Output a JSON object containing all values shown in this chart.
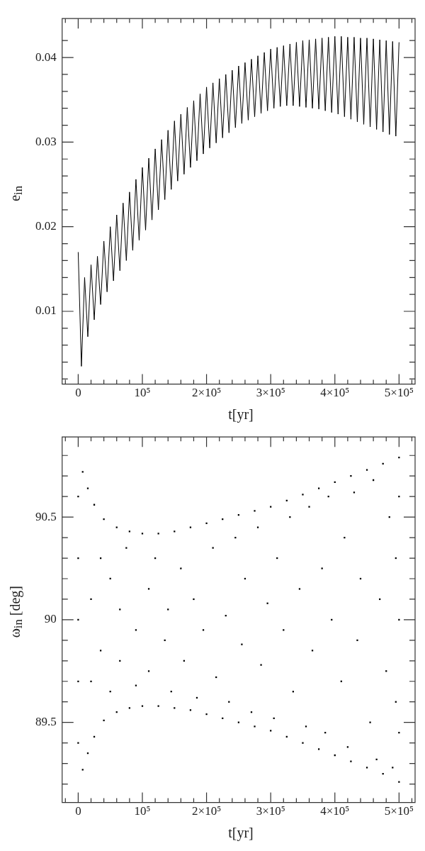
{
  "chart_data": [
    {
      "type": "line",
      "xlabel": "t[yr]",
      "ylabel": "e$_{in}$",
      "marker": "none",
      "color": "#000000",
      "x": [
        0,
        5000,
        10000,
        15000,
        20000,
        25000,
        30000,
        35000,
        40000,
        45000,
        50000,
        55000,
        60000,
        65000,
        70000,
        75000,
        80000,
        85000,
        90000,
        95000,
        100000,
        105000,
        110000,
        115000,
        120000,
        125000,
        130000,
        135000,
        140000,
        145000,
        150000,
        155000,
        160000,
        165000,
        170000,
        175000,
        180000,
        185000,
        190000,
        195000,
        200000,
        205000,
        210000,
        215000,
        220000,
        225000,
        230000,
        235000,
        240000,
        245000,
        250000,
        255000,
        260000,
        265000,
        270000,
        275000,
        280000,
        285000,
        290000,
        295000,
        300000,
        305000,
        310000,
        315000,
        320000,
        325000,
        330000,
        335000,
        340000,
        345000,
        350000,
        355000,
        360000,
        365000,
        370000,
        375000,
        380000,
        385000,
        390000,
        395000,
        400000,
        405000,
        410000,
        415000,
        420000,
        425000,
        430000,
        435000,
        440000,
        445000,
        450000,
        455000,
        460000,
        465000,
        470000,
        475000,
        480000,
        485000,
        490000,
        495000,
        500000
      ],
      "values": [
        0.017,
        0.0035,
        0.014,
        0.007,
        0.0155,
        0.009,
        0.0165,
        0.0108,
        0.0183,
        0.0123,
        0.02,
        0.0136,
        0.0214,
        0.0148,
        0.0228,
        0.016,
        0.0241,
        0.0172,
        0.0256,
        0.0184,
        0.027,
        0.0196,
        0.0281,
        0.0208,
        0.0292,
        0.022,
        0.0303,
        0.0232,
        0.0314,
        0.0244,
        0.0325,
        0.0254,
        0.0333,
        0.0262,
        0.0341,
        0.027,
        0.0349,
        0.0278,
        0.0357,
        0.0286,
        0.0365,
        0.0293,
        0.037,
        0.0299,
        0.0375,
        0.0305,
        0.038,
        0.0311,
        0.0385,
        0.0317,
        0.039,
        0.0322,
        0.0394,
        0.0326,
        0.0398,
        0.033,
        0.0402,
        0.0334,
        0.0406,
        0.0337,
        0.041,
        0.034,
        0.0412,
        0.0342,
        0.0414,
        0.0343,
        0.0416,
        0.0343,
        0.0418,
        0.0342,
        0.042,
        0.0341,
        0.0421,
        0.034,
        0.0422,
        0.0339,
        0.0423,
        0.0337,
        0.0424,
        0.0335,
        0.0425,
        0.0333,
        0.0425,
        0.033,
        0.0424,
        0.0327,
        0.0424,
        0.0324,
        0.0423,
        0.0321,
        0.0423,
        0.0318,
        0.0422,
        0.0315,
        0.0421,
        0.0312,
        0.042,
        0.0309,
        0.0419,
        0.0307,
        0.0418
      ],
      "xlim": [
        -25000,
        525000
      ],
      "ylim": [
        0.0014,
        0.0446
      ],
      "xticks": [
        {
          "value": -20000,
          "label": null
        },
        {
          "value": 0,
          "label": "0"
        },
        {
          "value": 20000,
          "label": null
        },
        {
          "value": 40000,
          "label": null
        },
        {
          "value": 60000,
          "label": null
        },
        {
          "value": 80000,
          "label": null
        },
        {
          "value": 100000,
          "label": "10⁵"
        },
        {
          "value": 120000,
          "label": null
        },
        {
          "value": 140000,
          "label": null
        },
        {
          "value": 160000,
          "label": null
        },
        {
          "value": 180000,
          "label": null
        },
        {
          "value": 200000,
          "label": "2×10⁵"
        },
        {
          "value": 220000,
          "label": null
        },
        {
          "value": 240000,
          "label": null
        },
        {
          "value": 260000,
          "label": null
        },
        {
          "value": 280000,
          "label": null
        },
        {
          "value": 300000,
          "label": "3×10⁵"
        },
        {
          "value": 320000,
          "label": null
        },
        {
          "value": 340000,
          "label": null
        },
        {
          "value": 360000,
          "label": null
        },
        {
          "value": 380000,
          "label": null
        },
        {
          "value": 400000,
          "label": "4×10⁵"
        },
        {
          "value": 420000,
          "label": null
        },
        {
          "value": 440000,
          "label": null
        },
        {
          "value": 460000,
          "label": null
        },
        {
          "value": 480000,
          "label": null
        },
        {
          "value": 500000,
          "label": "5×10⁵"
        },
        {
          "value": 520000,
          "label": null
        }
      ],
      "yticks": [
        {
          "value": 0.002,
          "label": null
        },
        {
          "value": 0.004,
          "label": null
        },
        {
          "value": 0.006,
          "label": null
        },
        {
          "value": 0.008,
          "label": null
        },
        0.01,
        {
          "value": 0.012,
          "label": null
        },
        {
          "value": 0.014,
          "label": null
        },
        {
          "value": 0.016,
          "label": null
        },
        {
          "value": 0.018,
          "label": null
        },
        0.02,
        {
          "value": 0.022,
          "label": null
        },
        {
          "value": 0.024,
          "label": null
        },
        {
          "value": 0.026,
          "label": null
        },
        {
          "value": 0.028,
          "label": null
        },
        0.03,
        {
          "value": 0.032,
          "label": null
        },
        {
          "value": 0.034,
          "label": null
        },
        {
          "value": 0.036,
          "label": null
        },
        {
          "value": 0.038,
          "label": null
        },
        0.04,
        {
          "value": 0.042,
          "label": null
        }
      ]
    },
    {
      "type": "scatter",
      "xlabel": "t[yr]",
      "ylabel": "ω$_{in}$ [deg]",
      "marker": "square",
      "color": "#000000",
      "x": [
        0,
        0,
        0,
        0,
        0,
        7000,
        15000,
        25000,
        40000,
        60000,
        80000,
        100000,
        125000,
        150000,
        175000,
        200000,
        225000,
        250000,
        275000,
        300000,
        325000,
        350000,
        375000,
        400000,
        425000,
        450000,
        475000,
        500000,
        7000,
        15000,
        25000,
        40000,
        60000,
        80000,
        100000,
        125000,
        150000,
        175000,
        200000,
        225000,
        250000,
        275000,
        300000,
        325000,
        350000,
        375000,
        400000,
        425000,
        450000,
        475000,
        500000,
        20000,
        20000,
        35000,
        35000,
        50000,
        50000,
        65000,
        65000,
        75000,
        90000,
        90000,
        110000,
        110000,
        120000,
        135000,
        140000,
        145000,
        160000,
        165000,
        180000,
        185000,
        195000,
        210000,
        215000,
        230000,
        235000,
        245000,
        255000,
        260000,
        270000,
        280000,
        285000,
        295000,
        305000,
        310000,
        320000,
        330000,
        335000,
        345000,
        355000,
        360000,
        365000,
        380000,
        385000,
        390000,
        395000,
        410000,
        415000,
        420000,
        430000,
        435000,
        440000,
        455000,
        460000,
        465000,
        470000,
        480000,
        485000,
        490000,
        495000,
        495000,
        500000,
        500000,
        500000
      ],
      "values": [
        89.4,
        89.7,
        90.0,
        90.3,
        90.6,
        90.72,
        90.64,
        90.56,
        90.49,
        90.45,
        90.43,
        90.42,
        90.42,
        90.43,
        90.45,
        90.47,
        90.49,
        90.51,
        90.53,
        90.55,
        90.58,
        90.61,
        90.64,
        90.67,
        90.7,
        90.73,
        90.76,
        90.79,
        89.27,
        89.35,
        89.43,
        89.51,
        89.55,
        89.57,
        89.58,
        89.58,
        89.57,
        89.56,
        89.54,
        89.52,
        89.5,
        89.48,
        89.46,
        89.43,
        89.4,
        89.37,
        89.34,
        89.31,
        89.28,
        89.25,
        89.21,
        90.1,
        89.7,
        90.3,
        89.85,
        89.65,
        90.2,
        90.05,
        89.8,
        90.35,
        89.95,
        89.68,
        90.15,
        89.75,
        90.3,
        89.9,
        90.05,
        89.65,
        90.25,
        89.8,
        90.1,
        89.62,
        89.95,
        90.35,
        89.72,
        90.02,
        89.6,
        90.4,
        89.88,
        90.2,
        89.55,
        90.45,
        89.78,
        90.08,
        89.52,
        90.3,
        89.95,
        90.5,
        89.65,
        90.15,
        89.48,
        90.55,
        89.85,
        90.25,
        89.45,
        90.6,
        90.0,
        89.7,
        90.4,
        89.38,
        90.62,
        89.9,
        90.2,
        89.5,
        90.68,
        89.32,
        90.1,
        89.75,
        90.5,
        89.28,
        90.3,
        89.6,
        90.0,
        89.45,
        90.6
      ],
      "xlim": [
        -25000,
        525000
      ],
      "ylim": [
        89.11,
        90.89
      ],
      "xticks": [
        {
          "value": -20000,
          "label": null
        },
        {
          "value": 0,
          "label": "0"
        },
        {
          "value": 20000,
          "label": null
        },
        {
          "value": 40000,
          "label": null
        },
        {
          "value": 60000,
          "label": null
        },
        {
          "value": 80000,
          "label": null
        },
        {
          "value": 100000,
          "label": "10⁵"
        },
        {
          "value": 120000,
          "label": null
        },
        {
          "value": 140000,
          "label": null
        },
        {
          "value": 160000,
          "label": null
        },
        {
          "value": 180000,
          "label": null
        },
        {
          "value": 200000,
          "label": "2×10⁵"
        },
        {
          "value": 220000,
          "label": null
        },
        {
          "value": 240000,
          "label": null
        },
        {
          "value": 260000,
          "label": null
        },
        {
          "value": 280000,
          "label": null
        },
        {
          "value": 300000,
          "label": "3×10⁵"
        },
        {
          "value": 320000,
          "label": null
        },
        {
          "value": 340000,
          "label": null
        },
        {
          "value": 360000,
          "label": null
        },
        {
          "value": 380000,
          "label": null
        },
        {
          "value": 400000,
          "label": "4×10⁵"
        },
        {
          "value": 420000,
          "label": null
        },
        {
          "value": 440000,
          "label": null
        },
        {
          "value": 460000,
          "label": null
        },
        {
          "value": 480000,
          "label": null
        },
        {
          "value": 500000,
          "label": "5×10⁵"
        },
        {
          "value": 520000,
          "label": null
        }
      ],
      "yticks": [
        {
          "value": 89.2,
          "label": null
        },
        {
          "value": 89.3,
          "label": null
        },
        {
          "value": 89.4,
          "label": null
        },
        89.5,
        {
          "value": 89.6,
          "label": null
        },
        {
          "value": 89.7,
          "label": null
        },
        {
          "value": 89.8,
          "label": null
        },
        {
          "value": 89.9,
          "label": null
        },
        90,
        {
          "value": 90.1,
          "label": null
        },
        {
          "value": 90.2,
          "label": null
        },
        {
          "value": 90.3,
          "label": null
        },
        {
          "value": 90.4,
          "label": null
        },
        90.5,
        {
          "value": 90.6,
          "label": null
        },
        {
          "value": 90.7,
          "label": null
        },
        {
          "value": 90.8,
          "label": null
        }
      ]
    }
  ]
}
